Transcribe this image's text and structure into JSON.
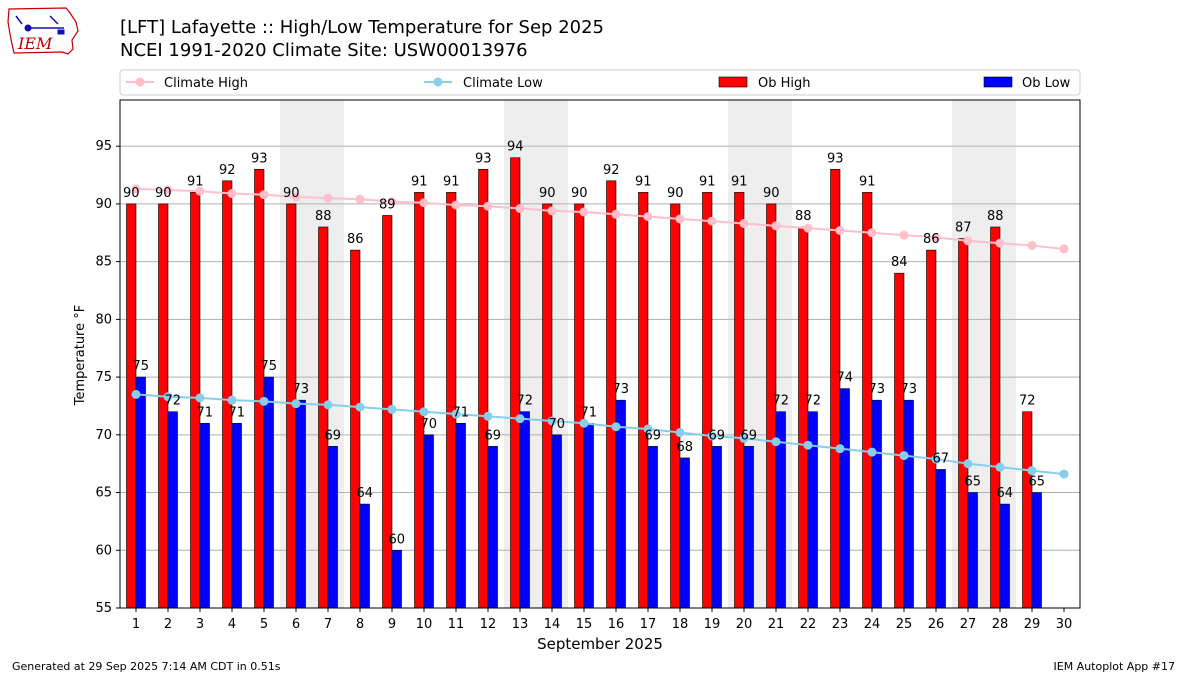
{
  "header": {
    "title_line1": "[LFT] Lafayette :: High/Low Temperature for Sep 2025",
    "title_line2": "NCEI 1991-2020 Climate Site: USW00013976"
  },
  "logo": {
    "text": "IEM"
  },
  "footer": {
    "left": "Generated at 29 Sep 2025 7:14 AM CDT in 0.51s",
    "right": "IEM Autoplot App #17"
  },
  "colors": {
    "ob_high": "#ff0000",
    "ob_low": "#0000ff",
    "climate_high": "#ffc0cb",
    "climate_low": "#87ceeb",
    "weekend_shade": "#eeeeee",
    "grid": "#b0b0b0"
  },
  "chart_data": {
    "type": "bar",
    "title": "[LFT] Lafayette :: High/Low Temperature for Sep 2025",
    "xlabel": "September 2025",
    "ylabel": "Temperature °F",
    "ylim": [
      55,
      99
    ],
    "yticks": [
      55,
      60,
      65,
      70,
      75,
      80,
      85,
      90,
      95
    ],
    "categories": [
      "1",
      "2",
      "3",
      "4",
      "5",
      "6",
      "7",
      "8",
      "9",
      "10",
      "11",
      "12",
      "13",
      "14",
      "15",
      "16",
      "17",
      "18",
      "19",
      "20",
      "21",
      "22",
      "23",
      "24",
      "25",
      "26",
      "27",
      "28",
      "29",
      "30"
    ],
    "grid": true,
    "legend_position": "top, full width",
    "shaded_weekends": [
      6,
      7,
      13,
      14,
      20,
      21,
      27,
      28
    ],
    "series": [
      {
        "name": "Ob High",
        "kind": "bar",
        "values": [
          90,
          90,
          91,
          92,
          93,
          90,
          88,
          86,
          89,
          91,
          91,
          93,
          94,
          90,
          90,
          92,
          91,
          90,
          91,
          91,
          90,
          88,
          93,
          91,
          84,
          86,
          87,
          88,
          72,
          null
        ]
      },
      {
        "name": "Ob Low",
        "kind": "bar",
        "values": [
          75,
          72,
          71,
          71,
          75,
          73,
          69,
          64,
          60,
          70,
          71,
          69,
          72,
          70,
          71,
          73,
          69,
          68,
          69,
          69,
          72,
          72,
          74,
          73,
          73,
          67,
          65,
          64,
          65,
          null
        ]
      },
      {
        "name": "Climate High",
        "kind": "line",
        "values": [
          91.3,
          91.2,
          91.1,
          90.9,
          90.8,
          90.6,
          90.5,
          90.4,
          90.2,
          90.1,
          89.9,
          89.8,
          89.6,
          89.4,
          89.3,
          89.1,
          88.9,
          88.7,
          88.5,
          88.3,
          88.1,
          87.9,
          87.7,
          87.5,
          87.3,
          87.1,
          86.8,
          86.6,
          86.4,
          86.1
        ]
      },
      {
        "name": "Climate Low",
        "kind": "line",
        "values": [
          73.5,
          73.3,
          73.2,
          73.0,
          72.9,
          72.7,
          72.6,
          72.4,
          72.2,
          72.0,
          71.8,
          71.6,
          71.4,
          71.2,
          71.0,
          70.7,
          70.5,
          70.2,
          69.9,
          69.7,
          69.4,
          69.1,
          68.8,
          68.5,
          68.2,
          67.9,
          67.5,
          67.2,
          66.9,
          66.6
        ]
      }
    ]
  }
}
